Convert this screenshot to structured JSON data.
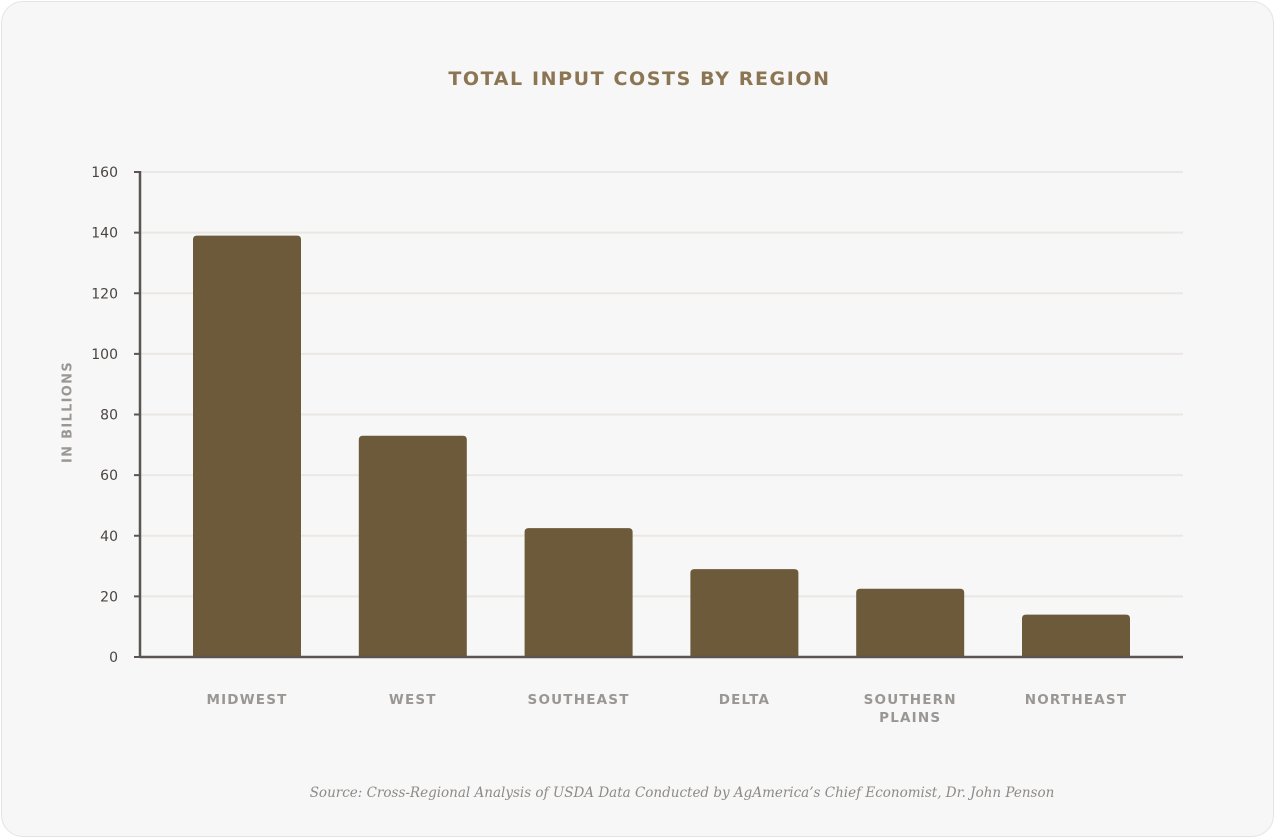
{
  "chart_data": {
    "type": "bar",
    "title": "TOTAL INPUT COSTS BY REGION",
    "xlabel": "",
    "ylabel": "IN BILLIONS",
    "categories": [
      [
        "MIDWEST"
      ],
      [
        "WEST"
      ],
      [
        "SOUTHEAST"
      ],
      [
        "DELTA"
      ],
      [
        "SOUTHERN",
        "PLAINS"
      ],
      [
        "NORTHEAST"
      ]
    ],
    "values": [
      139,
      73,
      42.5,
      29,
      22.5,
      14
    ],
    "ylim": [
      0,
      160
    ],
    "yticks": [
      0,
      20,
      40,
      60,
      80,
      100,
      120,
      140,
      160
    ],
    "grid": true,
    "bar_color": "#6c5a3b",
    "source": "Source: Cross-Regional Analysis of USDA Data Conducted by AgAmerica’s Chief Economist, Dr. John Penson"
  }
}
